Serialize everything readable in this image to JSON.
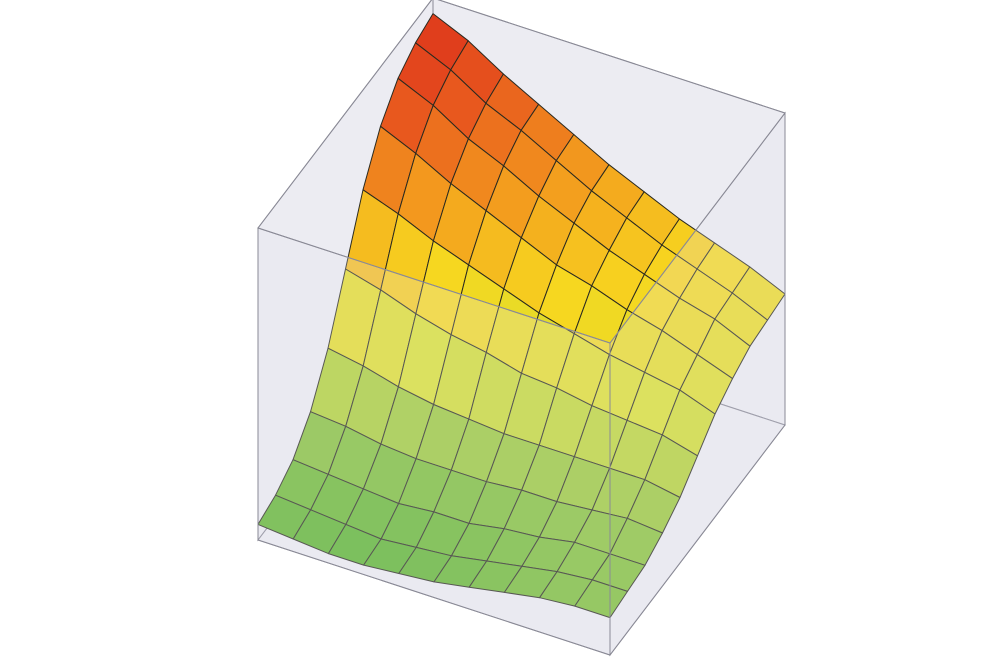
{
  "chart_data": {
    "type": "surface",
    "zlim": [
      0,
      1
    ],
    "colormap": [
      "#4caf2a",
      "#8cc43a",
      "#d8e030",
      "#f7d71f",
      "#f39a1e",
      "#e7551e",
      "#d9261a"
    ],
    "z": [
      [
        0.05,
        0.04,
        0.03,
        0.03,
        0.04,
        0.05,
        0.07,
        0.09,
        0.11,
        0.12,
        0.12
      ],
      [
        0.07,
        0.06,
        0.05,
        0.04,
        0.05,
        0.06,
        0.08,
        0.1,
        0.12,
        0.13,
        0.13
      ],
      [
        0.11,
        0.1,
        0.09,
        0.08,
        0.09,
        0.09,
        0.11,
        0.12,
        0.14,
        0.14,
        0.14
      ],
      [
        0.19,
        0.18,
        0.16,
        0.15,
        0.15,
        0.15,
        0.16,
        0.16,
        0.17,
        0.18,
        0.17
      ],
      [
        0.32,
        0.3,
        0.27,
        0.25,
        0.24,
        0.23,
        0.23,
        0.23,
        0.23,
        0.23,
        0.21
      ],
      [
        0.5,
        0.47,
        0.43,
        0.4,
        0.38,
        0.35,
        0.34,
        0.32,
        0.31,
        0.3,
        0.27
      ],
      [
        0.68,
        0.64,
        0.59,
        0.55,
        0.51,
        0.47,
        0.44,
        0.41,
        0.39,
        0.37,
        0.33
      ],
      [
        0.81,
        0.76,
        0.7,
        0.65,
        0.6,
        0.55,
        0.52,
        0.48,
        0.45,
        0.41,
        0.37
      ],
      [
        0.89,
        0.84,
        0.77,
        0.72,
        0.66,
        0.61,
        0.56,
        0.52,
        0.48,
        0.45,
        0.4
      ],
      [
        0.93,
        0.88,
        0.81,
        0.76,
        0.7,
        0.64,
        0.59,
        0.54,
        0.5,
        0.46,
        0.41
      ],
      [
        0.95,
        0.9,
        0.83,
        0.77,
        0.71,
        0.65,
        0.6,
        0.55,
        0.51,
        0.47,
        0.42
      ]
    ]
  }
}
